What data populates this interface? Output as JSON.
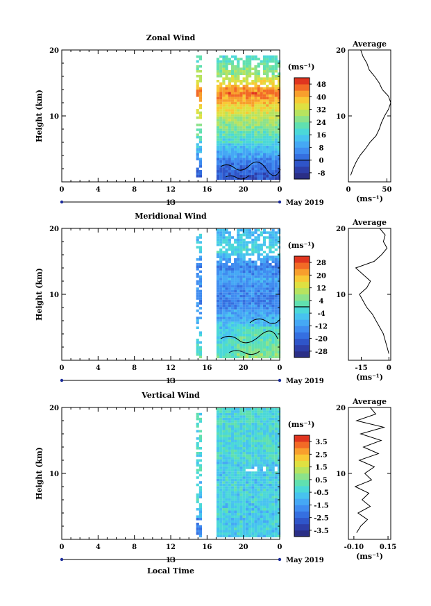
{
  "chart_data": [
    {
      "type": "heatmap",
      "title": "Zonal Wind",
      "ylabel": "Height (km)",
      "xlabel": "",
      "xlim": [
        0,
        24
      ],
      "ylim": [
        0,
        20
      ],
      "x_ticks": [
        "0",
        "4",
        "8",
        "12",
        "16",
        "20",
        "0"
      ],
      "y_ticks": [
        "10",
        "20"
      ],
      "day_label": "13",
      "date_label": "May 2019",
      "colorbar": {
        "unit_label": "(ms⁻¹)",
        "ticks": [
          "48",
          "40",
          "32",
          "24",
          "16",
          "8",
          "0",
          "-8"
        ],
        "range": [
          -12,
          52
        ],
        "zero_line": 0
      },
      "profile": {
        "title": "Average",
        "xlabel": "(ms⁻¹)",
        "x_ticks": [
          "0",
          "50"
        ],
        "xlim": [
          0,
          55
        ],
        "y_ticks": [
          "10",
          "20"
        ],
        "heights": [
          1,
          2,
          3,
          4,
          5,
          6,
          7,
          8,
          9,
          10,
          11,
          12,
          13,
          14,
          15,
          16,
          17,
          18,
          19,
          20
        ],
        "values": [
          3,
          6,
          10,
          15,
          22,
          28,
          36,
          40,
          43,
          47,
          52,
          55,
          52,
          44,
          40,
          34,
          27,
          24,
          19,
          16
        ]
      }
    },
    {
      "type": "heatmap",
      "title": "Meridional Wind",
      "ylabel": "Height (km)",
      "xlabel": "",
      "xlim": [
        0,
        24
      ],
      "ylim": [
        0,
        20
      ],
      "x_ticks": [
        "0",
        "4",
        "8",
        "12",
        "16",
        "20",
        "0"
      ],
      "y_ticks": [
        "10",
        "20"
      ],
      "day_label": "13",
      "date_label": "May 2019",
      "colorbar": {
        "unit_label": "(ms⁻¹)",
        "ticks": [
          "28",
          "20",
          "12",
          "4",
          "-4",
          "-12",
          "-20",
          "-28"
        ],
        "range": [
          -32,
          32
        ],
        "zero_line": 0
      },
      "profile": {
        "title": "Average",
        "xlabel": "(ms⁻¹)",
        "x_ticks": [
          "-15",
          "0"
        ],
        "xlim": [
          -22,
          1
        ],
        "y_ticks": [
          "10",
          "20"
        ],
        "heights": [
          1,
          2,
          3,
          4,
          5,
          6,
          7,
          8,
          9,
          10,
          11,
          12,
          13,
          14,
          15,
          16,
          17,
          18,
          19,
          20
        ],
        "values": [
          0,
          -1,
          -2,
          -3,
          -5,
          -7,
          -9,
          -12,
          -14,
          -16,
          -12,
          -10,
          -14,
          -18,
          -8,
          -4,
          -1,
          -3,
          -2,
          -5
        ]
      }
    },
    {
      "type": "heatmap",
      "title": "Vertical Wind",
      "ylabel": "Height (km)",
      "xlabel": "Local Time",
      "xlim": [
        0,
        24
      ],
      "ylim": [
        0,
        20
      ],
      "x_ticks": [
        "0",
        "4",
        "8",
        "12",
        "16",
        "20",
        "0"
      ],
      "y_ticks": [
        "10",
        "20"
      ],
      "day_label": "13",
      "date_label": "May 2019",
      "colorbar": {
        "unit_label": "(ms⁻¹)",
        "ticks": [
          "3.5",
          "2.5",
          "1.5",
          "0.5",
          "-0.5",
          "-1.5",
          "-2.5",
          "-3.5"
        ],
        "range": [
          -4,
          4
        ]
      },
      "profile": {
        "title": "Average",
        "xlabel": "(ms⁻¹)",
        "x_ticks": [
          "-0.10",
          "0.15"
        ],
        "xlim": [
          -0.14,
          0.17
        ],
        "y_ticks": [
          "10",
          "20"
        ],
        "heights": [
          1,
          2,
          3,
          4,
          5,
          6,
          7,
          8,
          9,
          10,
          11,
          12,
          13,
          14,
          15,
          16,
          17,
          18,
          19,
          20
        ],
        "values": [
          -0.08,
          -0.05,
          0.0,
          -0.07,
          0.02,
          -0.04,
          0.01,
          -0.09,
          0.03,
          -0.02,
          0.05,
          -0.06,
          0.08,
          -0.03,
          0.1,
          -0.05,
          0.12,
          -0.08,
          0.06,
          0.02
        ]
      }
    }
  ]
}
